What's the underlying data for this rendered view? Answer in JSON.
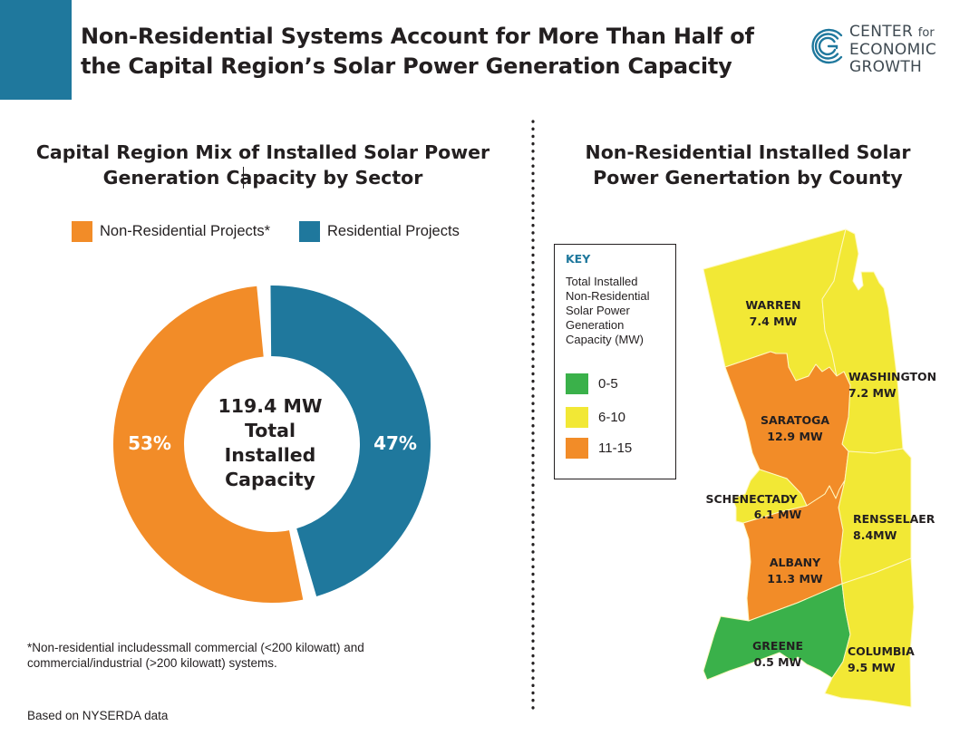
{
  "header": {
    "title_lines": [
      "Non-Residential Systems Account for More Than Half of",
      "the Capital Region’s Solar Power Generation Capacity"
    ],
    "accent_color": "#1f789d",
    "logo": {
      "icon": "cecg-logo-icon",
      "lines": [
        "CENTER",
        "for",
        "ECONOMIC",
        "GROWTH"
      ]
    }
  },
  "left_panel": {
    "title_lines": [
      "Capital Region Mix of Installed Solar Power",
      "Generation Capacity by Sector"
    ],
    "footnote_lines": [
      "*Non-residential includessmall commercial (<200 kilowatt) and",
      "commercial/industrial (>200 kilowatt) systems."
    ],
    "source": "Based on NYSERDA data"
  },
  "right_panel": {
    "title_lines": [
      "Non-Residential Installed Solar",
      "Power Genertation by County"
    ],
    "key": {
      "heading": "KEY",
      "description_lines": [
        "Total Installed",
        "Non-Residential",
        "Solar Power",
        "Generation",
        "Capacity (MW)"
      ],
      "items": [
        {
          "label": "0-5",
          "color": "#3ab14a"
        },
        {
          "label": "6-10",
          "color": "#f2e835"
        },
        {
          "label": "11-15",
          "color": "#f28c28"
        }
      ]
    }
  },
  "chart_data": [
    {
      "type": "pie",
      "variant": "donut",
      "title": "Capital Region Mix of Installed Solar Power Generation Capacity by Sector",
      "categories": [
        "Non-Residential Projects*",
        "Residential Projects"
      ],
      "values": [
        53,
        47
      ],
      "value_labels": [
        "53%",
        "47%"
      ],
      "colors": [
        "#f28c28",
        "#1f789d"
      ],
      "legend": "top",
      "center_label_lines": [
        "119.4 MW",
        "Total",
        "Installed",
        "Capacity"
      ],
      "total_mw": 119.4
    },
    {
      "type": "choropleth",
      "title": "Non-Residential Installed Solar Power Genertation by County",
      "unit": "MW",
      "counties": [
        {
          "name": "WARREN",
          "value": 7.4,
          "label": "7.4 MW",
          "bin": "6-10"
        },
        {
          "name": "WASHINGTON",
          "value": 7.2,
          "label": "7.2 MW",
          "bin": "6-10"
        },
        {
          "name": "SARATOGA",
          "value": 12.9,
          "label": "12.9 MW",
          "bin": "11-15"
        },
        {
          "name": "SCHENECTADY",
          "value": 6.1,
          "label": "6.1 MW",
          "bin": "6-10"
        },
        {
          "name": "RENSSELAER",
          "value": 8.4,
          "label": "8.4MW",
          "bin": "6-10"
        },
        {
          "name": "ALBANY",
          "value": 11.3,
          "label": "11.3 MW",
          "bin": "11-15"
        },
        {
          "name": "GREENE",
          "value": 0.5,
          "label": "0.5 MW",
          "bin": "0-5"
        },
        {
          "name": "COLUMBIA",
          "value": 9.5,
          "label": "9.5 MW",
          "bin": "6-10"
        }
      ],
      "bins": [
        {
          "label": "0-5",
          "color": "#3ab14a"
        },
        {
          "label": "6-10",
          "color": "#f2e835"
        },
        {
          "label": "11-15",
          "color": "#f28c28"
        }
      ]
    }
  ]
}
